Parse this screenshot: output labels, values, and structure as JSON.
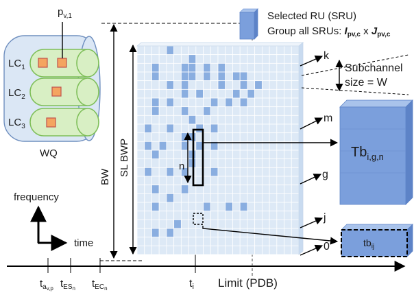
{
  "legend": {
    "selected_ru": "Selected RU (SRU)",
    "group_prefix": "Group all SRUs: ",
    "group_i": "I",
    "group_j": "J",
    "group_sub": "pv,c",
    "group_x": " x "
  },
  "queue": {
    "label": "WQ",
    "packet_main": "p",
    "packet_sub": "v,1",
    "channels": [
      {
        "main": "LC",
        "sub": "1"
      },
      {
        "main": "LC",
        "sub": "2"
      },
      {
        "main": "LC",
        "sub": "3"
      }
    ]
  },
  "axes": {
    "bw": "BW",
    "sl_bwp": "SL BWP",
    "frequency": "frequency",
    "time": "time",
    "limit": "Limit (PDB)"
  },
  "subchannel": {
    "line1": "Subchannel",
    "line2": "size = W"
  },
  "row_labels": [
    "k",
    "m",
    "g",
    "j",
    "0"
  ],
  "n_label": "n",
  "blocks": {
    "big": {
      "main": "Tb",
      "sub": "i,g,n"
    },
    "small": {
      "main": "tb",
      "sub": "ij"
    }
  },
  "timeline": [
    {
      "main": "t",
      "sub": "a",
      "subsub": "v,p"
    },
    {
      "main": "t",
      "sub": "ES",
      "subsub": "n"
    },
    {
      "main": "t",
      "sub": "EC",
      "subsub": "n"
    },
    {
      "main": "t",
      "sub": "i",
      "subsub": ""
    }
  ],
  "colors": {
    "cell_light": "#dde9f6",
    "cell_dark": "#8aaee0",
    "block_fill": "#7b9fdc",
    "lc_fill": "#d8efc4",
    "lc_stroke": "#7fbf5a",
    "packet_fill": "#f4a460",
    "packet_stroke": "#c0504d",
    "wq_fill": "#dbe7f5"
  },
  "grid_pattern": [
    "0000100000000000000000",
    "0000000100000000000000",
    "0010001101010000000000",
    "0010001101010110000000",
    "0000101000010010100000",
    "0000001010000101000000",
    "0010100000101010000000",
    "0010001001000000000000",
    "0000000100000000000000",
    "0100100010100000000000",
    "0000001100000000000000",
    "0101001010100000000000",
    "0010000100000000000000",
    "0000000100000000000000",
    "0100101000100000000000",
    "0000000000000000000000",
    "0010001000000000000000",
    "0000100000000000000000",
    "0010000001001010000000",
    "0000000000000000000000",
    "0000010000000000000000",
    "0010100000000000000000",
    "0000000000000000000000",
    "0000000000000000000000"
  ]
}
